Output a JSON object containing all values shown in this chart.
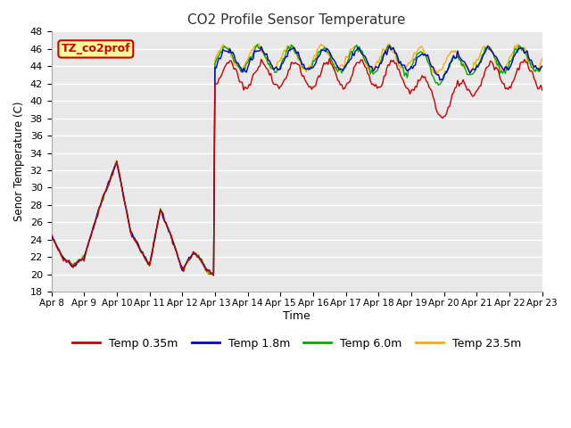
{
  "title": "CO2 Profile Sensor Temperature",
  "ylabel": "Senor Temperature (C)",
  "xlabel": "Time",
  "ylim": [
    18,
    48
  ],
  "yticks": [
    18,
    20,
    22,
    24,
    26,
    28,
    30,
    32,
    34,
    36,
    38,
    40,
    42,
    44,
    46,
    48
  ],
  "colors": {
    "red": "#cc0000",
    "blue": "#0000cc",
    "green": "#00aa00",
    "orange": "#ffaa00"
  },
  "legend_labels": [
    "Temp 0.35m",
    "Temp 1.8m",
    "Temp 6.0m",
    "Temp 23.5m"
  ],
  "legend_colors": [
    "#cc0000",
    "#0000cc",
    "#00aa00",
    "#ffaa00"
  ],
  "annotation_text": "TZ_co2prof",
  "annotation_bg": "#ffff99",
  "annotation_border": "#cc0000",
  "fig_bg": "#ffffff",
  "plot_bg": "#e8e8e8",
  "grid_color": "#ffffff",
  "x_tick_labels": [
    "Apr 8",
    "Apr 9",
    "Apr 10",
    "Apr 11",
    "Apr 12",
    "Apr 13",
    "Apr 14",
    "Apr 15",
    "Apr 16",
    "Apr 17",
    "Apr 18",
    "Apr 19",
    "Apr 20",
    "Apr 21",
    "Apr 22",
    "Apr 23"
  ],
  "x_tick_positions": [
    0,
    24,
    48,
    72,
    96,
    120,
    144,
    168,
    192,
    216,
    240,
    264,
    288,
    312,
    336,
    360
  ]
}
